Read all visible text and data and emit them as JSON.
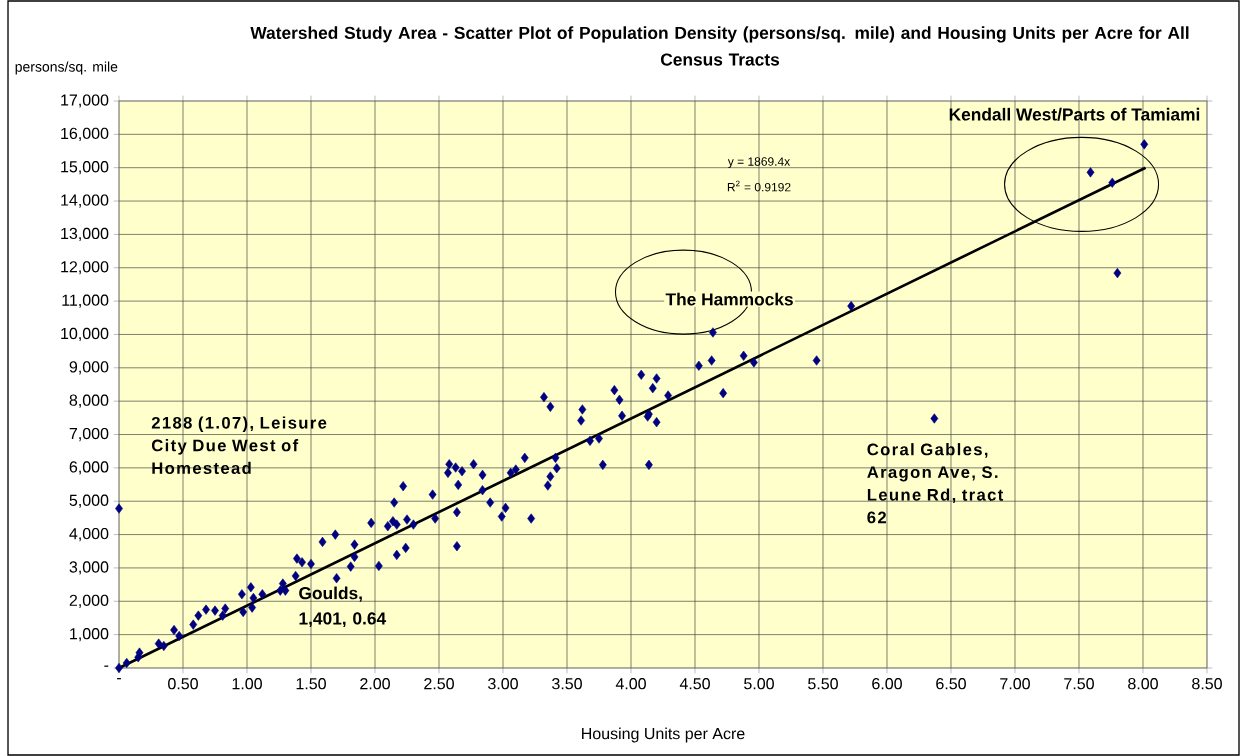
{
  "chart_data": {
    "type": "scatter",
    "title": "Watershed Study Area - Scatter Plot of Population Density (persons/sq. mile) and Housing Units per Acre for All Census Tracts",
    "xlabel": "Housing Units per Acre",
    "ylabel": "persons/sq. mile",
    "x": [
      0,
      2.22,
      2.15,
      1.97,
      2.1,
      2.14,
      2.17,
      2.25,
      2.3,
      1.69,
      1.59,
      1.84,
      1.84,
      1.81,
      2.03,
      2.17,
      2.24,
      1.39,
      1.43,
      1.5,
      1.7,
      1.38,
      1.28,
      1.26,
      1.3,
      0.96,
      1.03,
      1.05,
      1.12,
      0.97,
      1.04,
      0.83,
      0.81,
      0.68,
      0.75,
      0.62,
      0.58,
      0.43,
      0.47,
      0.35,
      0.31,
      0.16,
      0.15,
      0.06,
      0,
      2.45,
      2.47,
      2.64,
      2.64,
      2.58,
      2.57,
      2.63,
      2.68,
      2.77,
      2.65,
      2.84,
      2.84,
      2.9,
      3.02,
      2.99,
      3.22,
      3.06,
      3.1,
      3.17,
      3.41,
      3.42,
      3.37,
      3.35,
      3.32,
      3.37,
      3.62,
      3.61,
      3.68,
      3.75,
      3.78,
      3.87,
      3.91,
      3.93,
      4.08,
      4.2,
      4.17,
      4.29,
      4.13,
      4.2,
      4.14,
      4.14,
      4.53,
      4.63,
      4.64,
      4.72,
      4.88,
      4.96,
      5.45,
      5.72,
      6.37,
      7.59,
      7.76,
      7.8,
      8.01
    ],
    "series": [
      {
        "color": "#000080",
        "values": [
          4780,
          5450,
          4960,
          4350,
          4250,
          4400,
          4300,
          4450,
          4300,
          4000,
          3780,
          3700,
          3330,
          3040,
          3060,
          3390,
          3600,
          3280,
          3170,
          3120,
          2690,
          2760,
          2530,
          2320,
          2320,
          2210,
          2420,
          2100,
          2210,
          1680,
          1810,
          1780,
          1570,
          1750,
          1720,
          1570,
          1300,
          1140,
          960,
          660,
          730,
          460,
          320,
          150,
          0,
          5200,
          4480,
          4670,
          3650,
          6110,
          5850,
          6010,
          5900,
          6110,
          5490,
          5790,
          5330,
          4960,
          4800,
          4540,
          4480,
          5850,
          5950,
          6300,
          6300,
          5990,
          5740,
          5470,
          8120,
          7830,
          7750,
          7420,
          6810,
          6880,
          6090,
          8330,
          8040,
          7560,
          8790,
          8680,
          8390,
          8170,
          7540,
          7370,
          7610,
          6090,
          9060,
          9220,
          10060,
          8240,
          9360,
          9160,
          9220,
          10850,
          7480,
          14860,
          14550,
          11840,
          15700
        ]
      },
      {
        "type": "line",
        "color": "#000000",
        "marker": "none",
        "x": [
          0,
          8.02
        ],
        "values": [
          0,
          15000
        ]
      }
    ],
    "xlim": [
      0,
      8.5
    ],
    "ylim": [
      0,
      17000
    ],
    "xticks": [
      {
        "value": 0,
        "label": "-"
      },
      {
        "value": 0.5,
        "label": "0.50"
      },
      {
        "value": 1,
        "label": "1.00"
      },
      {
        "value": 1.5,
        "label": "1.50"
      },
      {
        "value": 2,
        "label": "2.00"
      },
      {
        "value": 2.5,
        "label": "2.50"
      },
      {
        "value": 3,
        "label": "3.00"
      },
      {
        "value": 3.5,
        "label": "3.50"
      },
      {
        "value": 4,
        "label": "4.00"
      },
      {
        "value": 4.5,
        "label": "4.50"
      },
      {
        "value": 5,
        "label": "5.00"
      },
      {
        "value": 5.5,
        "label": "5.50"
      },
      {
        "value": 6,
        "label": "6.00"
      },
      {
        "value": 6.5,
        "label": "6.50"
      },
      {
        "value": 7,
        "label": "7.00"
      },
      {
        "value": 7.5,
        "label": "7.50"
      },
      {
        "value": 8,
        "label": "8.00"
      },
      {
        "value": 8.5,
        "label": "8.50"
      }
    ],
    "yticks": [
      {
        "value": 0,
        "label": "-"
      },
      {
        "value": 1000,
        "label": "1,000"
      },
      {
        "value": 2000,
        "label": "2,000"
      },
      {
        "value": 3000,
        "label": "3,000"
      },
      {
        "value": 4000,
        "label": "4,000"
      },
      {
        "value": 5000,
        "label": "5,000"
      },
      {
        "value": 6000,
        "label": "6,000"
      },
      {
        "value": 7000,
        "label": "7,000"
      },
      {
        "value": 8000,
        "label": "8,000"
      },
      {
        "value": 9000,
        "label": "9,000"
      },
      {
        "value": 10000,
        "label": "10,000"
      },
      {
        "value": 11000,
        "label": "11,000"
      },
      {
        "value": 12000,
        "label": "12,000"
      },
      {
        "value": 13000,
        "label": "13,000"
      },
      {
        "value": 14000,
        "label": "14,000"
      },
      {
        "value": 15000,
        "label": "15,000"
      },
      {
        "value": 16000,
        "label": "16,000"
      },
      {
        "value": 17000,
        "label": "17,000"
      }
    ],
    "annotations": [
      "Kendall West/Parts of Tamiami",
      "y = 1869.4x",
      "R$^{2}$ = 0.9192",
      "The Hammocks",
      "2188 (1.07), Leisure City Due West of Homestead",
      "Coral Gables, Aragon Ave, S. Leune Rd, tract 62",
      "Goulds, 1,401, 0.64"
    ],
    "grid": true,
    "marker": "diamond"
  }
}
